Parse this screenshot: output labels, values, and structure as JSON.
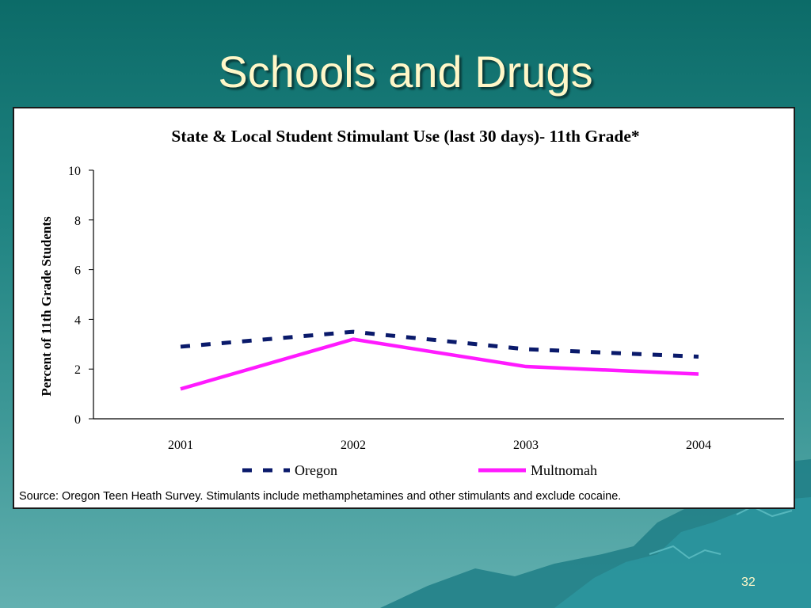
{
  "slide": {
    "title": "Schools and Drugs",
    "page_number": "32",
    "colors": {
      "title": "#fff7c8",
      "background_top": "#0c6b68",
      "background_bottom": "#63b0b0"
    }
  },
  "chart_data": {
    "type": "line",
    "title": "State & Local Student Stimulant Use (last 30 days)- 11th Grade*",
    "xlabel": "",
    "ylabel": "Percent of 11th Grade Students",
    "categories": [
      "2001",
      "2002",
      "2003",
      "2004"
    ],
    "ylim": [
      0,
      10
    ],
    "yticks": [
      "0",
      "2",
      "4",
      "6",
      "8",
      "10"
    ],
    "grid": false,
    "legend_position": "bottom",
    "series": [
      {
        "name": "Oregon",
        "values": [
          2.9,
          3.5,
          2.8,
          2.5
        ],
        "color": "#0a1a6b",
        "style": "dashed"
      },
      {
        "name": "Multnomah",
        "values": [
          1.2,
          3.2,
          2.1,
          1.8
        ],
        "color": "#ff1aff",
        "style": "solid"
      }
    ],
    "source_note": "Source: Oregon Teen Heath Survey.  Stimulants include methamphetamines and other stimulants and exclude cocaine."
  }
}
